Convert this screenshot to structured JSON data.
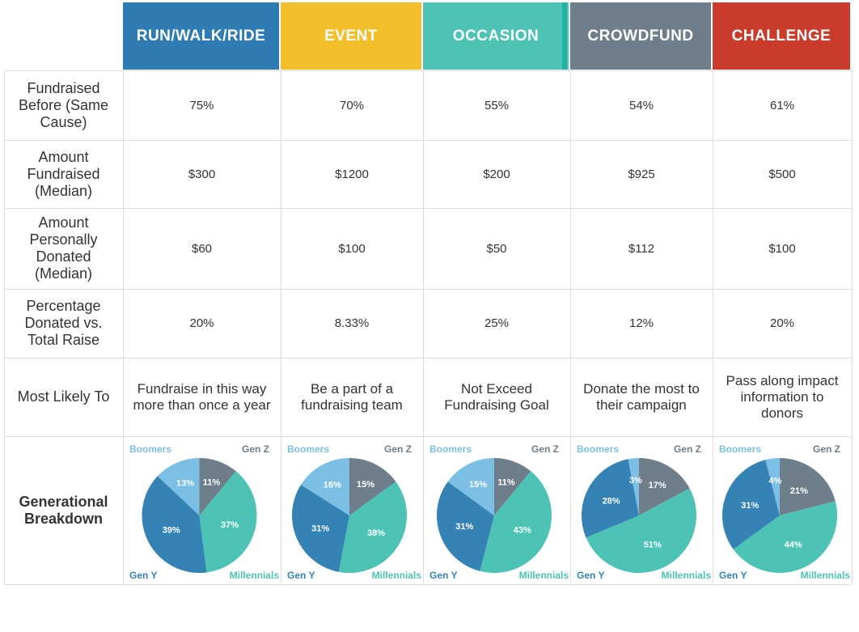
{
  "columns": [
    {
      "label": "RUN/WALK/RIDE",
      "color": "#2f7bb4"
    },
    {
      "label": "EVENT",
      "color": "#f2be2a"
    },
    {
      "label": "OCCASION",
      "color": "#4cc3b4"
    },
    {
      "label": "CROWDFUND",
      "color": "#6e7e8a"
    },
    {
      "label": "CHALLENGE",
      "color": "#c93b2a"
    }
  ],
  "rows": [
    {
      "label": "Fundraised Before (Same Cause)",
      "values": [
        "75%",
        "70%",
        "55%",
        "54%",
        "61%"
      ]
    },
    {
      "label": "Amount Fundraised (Median)",
      "values": [
        "$300",
        "$1200",
        "$200",
        "$925",
        "$500"
      ]
    },
    {
      "label": "Amount Personally Donated (Median)",
      "values": [
        "$60",
        "$100",
        "$50",
        "$112",
        "$100"
      ]
    },
    {
      "label": "Percentage Donated vs. Total Raise",
      "values": [
        "20%",
        "8.33%",
        "25%",
        "12%",
        "20%"
      ]
    },
    {
      "label": "Most Likely To",
      "values": [
        "Fundraise in this way more than once a year",
        "Be a part of a fundraising team",
        "Not Exceed Fundraising Goal",
        "Donate the most to their campaign",
        "Pass along impact information to donors"
      ]
    }
  ],
  "breakdown_label": "Generational Breakdown",
  "generation_labels": {
    "boomers": "Boomers",
    "genz": "Gen Z",
    "geny": "Gen Y",
    "millennials": "Millennials"
  },
  "generation_colors": {
    "boomers": "#7bbfe4",
    "genz": "#6e7e8a",
    "geny": "#3582b4",
    "millennials": "#4cc3b4"
  },
  "chart_data": [
    {
      "type": "pie",
      "title": "RUN/WALK/RIDE",
      "categories": [
        "Gen Z",
        "Millennials",
        "Gen Y",
        "Boomers"
      ],
      "values": [
        11,
        37,
        39,
        13
      ],
      "labels": [
        "11%",
        "37%",
        "39%",
        "13%"
      ]
    },
    {
      "type": "pie",
      "title": "EVENT",
      "categories": [
        "Gen Z",
        "Millennials",
        "Gen Y",
        "Boomers"
      ],
      "values": [
        15,
        38,
        31,
        16
      ],
      "labels": [
        "15%",
        "38%",
        "31%",
        "16%"
      ]
    },
    {
      "type": "pie",
      "title": "OCCASION",
      "categories": [
        "Gen Z",
        "Millennials",
        "Gen Y",
        "Boomers"
      ],
      "values": [
        11,
        43,
        31,
        15
      ],
      "labels": [
        "11%",
        "43%",
        "31%",
        "15%"
      ]
    },
    {
      "type": "pie",
      "title": "CROWDFUND",
      "categories": [
        "Gen Z",
        "Millennials",
        "Gen Y",
        "Boomers"
      ],
      "values": [
        17,
        51,
        28,
        3
      ],
      "labels": [
        "17%",
        "51%",
        "28%",
        "3%"
      ]
    },
    {
      "type": "pie",
      "title": "CHALLENGE",
      "categories": [
        "Gen Z",
        "Millennials",
        "Gen Y",
        "Boomers"
      ],
      "values": [
        21,
        44,
        31,
        4
      ],
      "labels": [
        "21%",
        "44%",
        "31%",
        "4%"
      ]
    }
  ]
}
